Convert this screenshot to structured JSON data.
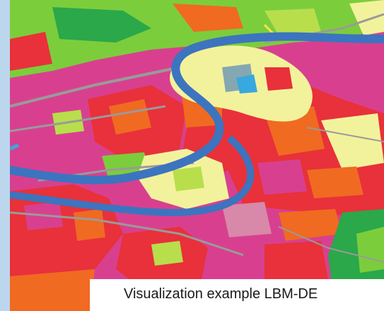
{
  "caption": "Visualization example LBM-DE",
  "map": {
    "theme": "land cover / land use (LBM-DE)",
    "colors": {
      "background_sidebar": "#bcd6ee",
      "settlement_magenta": "#d8408f",
      "urban_red": "#e8313a",
      "industrial_orange": "#f06a22",
      "vegetation_green": "#7ccd3c",
      "grassland_light_green": "#b8de4c",
      "forest_dark_green": "#2aa84a",
      "agriculture_yellow": "#f3f29c",
      "water_blue": "#3c74bf",
      "transport_gray": "#9a9a9a"
    }
  }
}
